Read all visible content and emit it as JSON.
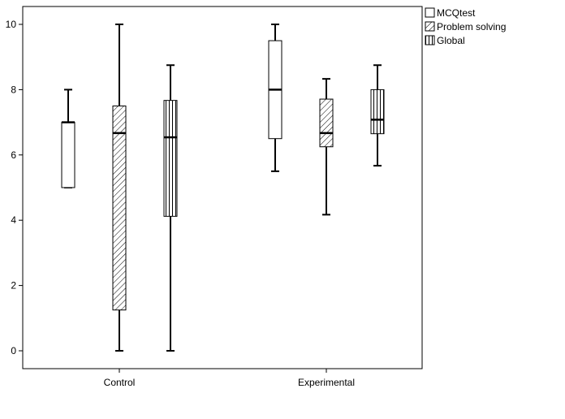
{
  "chart_data": {
    "type": "boxplot",
    "categories": [
      "Control",
      "Experimental"
    ],
    "ylim": [
      -0.6,
      10.6
    ],
    "yticks": [
      0,
      2,
      4,
      6,
      8,
      10
    ],
    "xlabel": "",
    "ylabel": "",
    "grid": false,
    "legend_position": "top-right, outside plot",
    "series": [
      {
        "name": "MCQtest",
        "pattern": "none",
        "boxes": [
          {
            "category": "Control",
            "min": 5.0,
            "q1": 5.0,
            "median": 7.0,
            "q3": 7.0,
            "max": 8.0
          },
          {
            "category": "Experimental",
            "min": 5.5,
            "q1": 6.5,
            "median": 8.0,
            "q3": 9.5,
            "max": 10.0
          }
        ]
      },
      {
        "name": "Problem solving",
        "pattern": "diagonal-hatch",
        "boxes": [
          {
            "category": "Control",
            "min": 0.0,
            "q1": 1.25,
            "median": 6.67,
            "q3": 7.5,
            "max": 10.0
          },
          {
            "category": "Experimental",
            "min": 4.17,
            "q1": 6.25,
            "median": 6.67,
            "q3": 7.71,
            "max": 8.33
          }
        ]
      },
      {
        "name": "Global",
        "pattern": "vertical-hatch",
        "boxes": [
          {
            "category": "Control",
            "min": 0.0,
            "q1": 4.12,
            "median": 6.54,
            "q3": 7.67,
            "max": 8.75
          },
          {
            "category": "Experimental",
            "min": 5.67,
            "q1": 6.65,
            "median": 7.08,
            "q3": 8.0,
            "max": 8.75
          }
        ]
      }
    ]
  },
  "colors": {
    "stroke": "#000000",
    "background": "#ffffff",
    "box_fill": "#ffffff"
  }
}
